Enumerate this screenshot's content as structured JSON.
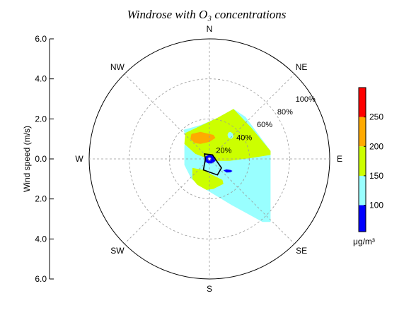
{
  "chart_data": {
    "type": "windrose_contour",
    "title": "Windrose with O₃ concentrations",
    "ylabel": "Wind speed (m/s)",
    "y_ticks": [
      "6.0",
      "4.0",
      "2.0",
      "0.0",
      "2.0",
      "4.0",
      "6.0"
    ],
    "directions": [
      "N",
      "NE",
      "E",
      "SE",
      "S",
      "SW",
      "W",
      "NW"
    ],
    "radial_percent_labels": [
      "20%",
      "40%",
      "60%",
      "80%",
      "100%"
    ],
    "radial_max_speed": 6.0,
    "grid": true,
    "colorbar": {
      "ticks": [
        "100",
        "150",
        "200",
        "250"
      ],
      "unit": "μg/m³",
      "range": [
        55,
        300
      ],
      "bands": [
        {
          "from": 55,
          "to": 100,
          "color": "#0000ff"
        },
        {
          "from": 100,
          "to": 150,
          "color": "#99ffff"
        },
        {
          "from": 150,
          "to": 200,
          "color": "#ccff00"
        },
        {
          "from": 200,
          "to": 250,
          "color": "#ffaa00"
        },
        {
          "from": 250,
          "to": 300,
          "color": "#ff0000"
        }
      ]
    },
    "regions": [
      {
        "level": "100-150",
        "color": "#99ffff",
        "points": [
          [
            -0.4,
            1.7
          ],
          [
            0.4,
            2.05
          ],
          [
            1.2,
            2.5
          ],
          [
            1.8,
            2.1
          ],
          [
            3.05,
            0.4
          ],
          [
            3.05,
            0.0
          ],
          [
            3.05,
            -3.15
          ],
          [
            2.65,
            -3.15
          ],
          [
            1.1,
            -2.3
          ],
          [
            -0.15,
            -1.55
          ],
          [
            -0.9,
            -1.0
          ],
          [
            -1.25,
            -0.3
          ],
          [
            -1.25,
            0.6
          ],
          [
            -1.2,
            1.2
          ],
          [
            -1.3,
            1.45
          ]
        ]
      },
      {
        "level": "150-200",
        "color": "#ccff00",
        "points": [
          [
            -1.2,
            1.3
          ],
          [
            0.4,
            2.05
          ],
          [
            1.2,
            2.5
          ],
          [
            2.1,
            1.55
          ],
          [
            3.05,
            0.4
          ],
          [
            3.05,
            0.2
          ],
          [
            2.1,
            0.05
          ],
          [
            1.0,
            -0.1
          ],
          [
            0.2,
            -0.1
          ],
          [
            -0.7,
            0.25
          ],
          [
            -1.25,
            0.75
          ]
        ]
      },
      {
        "level": "150-200",
        "color": "#ccff00",
        "points": [
          [
            -0.85,
            -0.45
          ],
          [
            -0.3,
            -0.55
          ],
          [
            0.15,
            -0.8
          ],
          [
            0.65,
            -1.05
          ],
          [
            0.7,
            -1.25
          ],
          [
            0.2,
            -1.5
          ],
          [
            -0.15,
            -1.55
          ],
          [
            -0.6,
            -1.3
          ],
          [
            -0.85,
            -1.0
          ]
        ]
      },
      {
        "level": "100-150",
        "color": "#99ffff",
        "points": [
          [
            1.05,
            1.35
          ],
          [
            1.15,
            1.28
          ],
          [
            1.2,
            1.12
          ],
          [
            1.1,
            1.0
          ],
          [
            0.95,
            1.05
          ],
          [
            0.9,
            1.2
          ],
          [
            0.95,
            1.32
          ]
        ]
      },
      {
        "level": "200-250",
        "color": "#ffaa00",
        "points": [
          [
            -0.9,
            1.25
          ],
          [
            -0.45,
            1.35
          ],
          [
            0.2,
            1.2
          ],
          [
            0.3,
            1.05
          ],
          [
            0.0,
            0.85
          ],
          [
            -0.45,
            0.75
          ],
          [
            -0.75,
            0.8
          ],
          [
            -0.95,
            1.0
          ]
        ]
      },
      {
        "level": "55-100",
        "color": "#0000ff",
        "points": [
          [
            -0.25,
            0.0
          ],
          [
            -0.2,
            0.12
          ],
          [
            -0.05,
            0.2
          ],
          [
            0.15,
            0.18
          ],
          [
            0.3,
            0.07
          ],
          [
            0.3,
            -0.1
          ],
          [
            0.15,
            -0.22
          ],
          [
            -0.05,
            -0.23
          ],
          [
            -0.2,
            -0.15
          ]
        ]
      },
      {
        "level": "55-100",
        "color": "#0000ff",
        "points": [
          [
            0.7,
            -0.57
          ],
          [
            0.85,
            -0.52
          ],
          [
            1.05,
            -0.55
          ],
          [
            1.15,
            -0.6
          ],
          [
            1.05,
            -0.67
          ],
          [
            0.85,
            -0.68
          ]
        ]
      }
    ],
    "outline": [
      [
        -0.25,
        0.25
      ],
      [
        0.15,
        0.2
      ],
      [
        0.6,
        -0.45
      ],
      [
        0.4,
        -0.8
      ],
      [
        -0.3,
        -0.55
      ],
      [
        -0.2,
        0.0
      ]
    ]
  }
}
